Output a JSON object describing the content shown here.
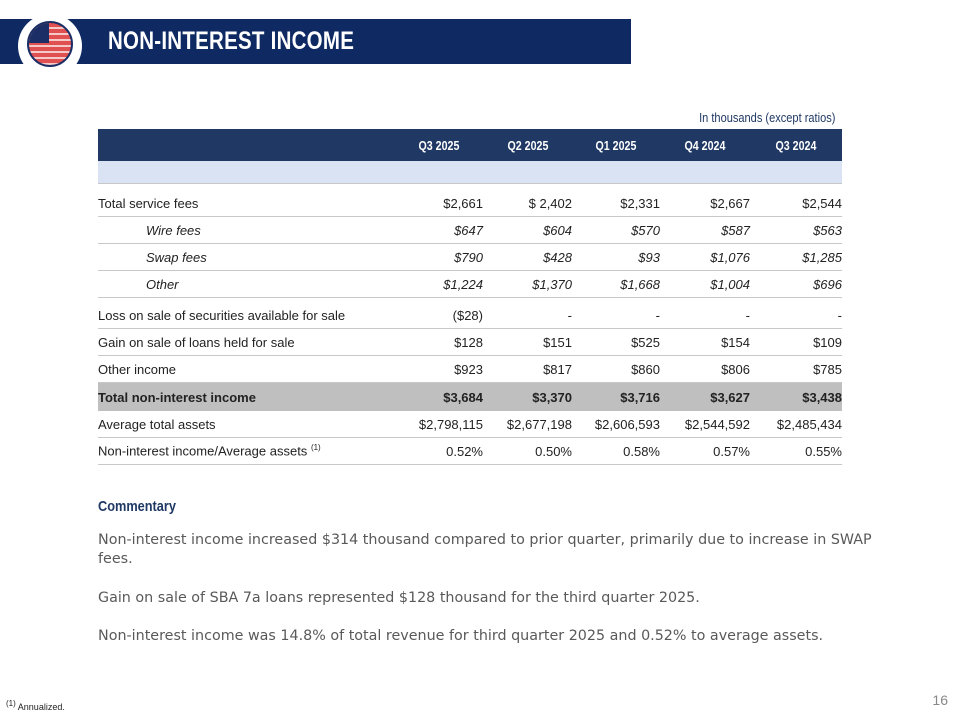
{
  "header": {
    "title": "NON-INTEREST INCOME"
  },
  "table": {
    "units": "In thousands (except ratios)",
    "columns": [
      "Q3 2025",
      "Q2 2025",
      "Q1 2025",
      "Q4 2024",
      "Q3 2024"
    ],
    "rows": [
      {
        "label": "Total service fees",
        "values": [
          "$2,661",
          "$ 2,402",
          "$2,331",
          "$2,667",
          "$2,544"
        ]
      },
      {
        "label": "Wire fees",
        "values": [
          "$647",
          "$604",
          "$570",
          "$587",
          "$563"
        ]
      },
      {
        "label": "Swap fees",
        "values": [
          "$790",
          "$428",
          "$93",
          "$1,076",
          "$1,285"
        ]
      },
      {
        "label": "Other",
        "values": [
          "$1,224",
          "$1,370",
          "$1,668",
          "$1,004",
          "$696"
        ]
      },
      {
        "label": "Loss on sale of securities available for sale",
        "values": [
          "($28)",
          "-",
          "-",
          "-",
          "-"
        ]
      },
      {
        "label": "Gain on sale of loans held for sale",
        "values": [
          "$128",
          "$151",
          "$525",
          "$154",
          "$109"
        ]
      },
      {
        "label": "Other income",
        "values": [
          "$923",
          "$817",
          "$860",
          "$806",
          "$785"
        ]
      },
      {
        "label": "Total non-interest income",
        "values": [
          "$3,684",
          "$3,370",
          "$3,716",
          "$3,627",
          "$3,438"
        ]
      },
      {
        "label": "Average total assets",
        "values": [
          "$2,798,115",
          "$2,677,198",
          "$2,606,593",
          "$2,544,592",
          "$2,485,434"
        ]
      },
      {
        "label": "Non-interest income/Average assets",
        "sup": "(1)",
        "values": [
          "0.52%",
          "0.50%",
          "0.58%",
          "0.57%",
          "0.55%"
        ]
      }
    ]
  },
  "commentary": {
    "title": "Commentary",
    "paragraphs": [
      "Non-interest income increased $314 thousand compared to prior quarter, primarily due to increase in SWAP fees.",
      "Gain on sale of SBA 7a loans represented $128 thousand for the third quarter 2025.",
      "Non-interest income was 14.8% of total revenue for third quarter 2025 and 0.52% to average assets."
    ]
  },
  "footer": {
    "footnote_mark": "(1)",
    "footnote": "Annualized.",
    "page": "16"
  },
  "colors": {
    "navy": "#0f2a63",
    "header": "#1f3864",
    "band": "#dae3f3",
    "total": "#bfbfbf"
  }
}
